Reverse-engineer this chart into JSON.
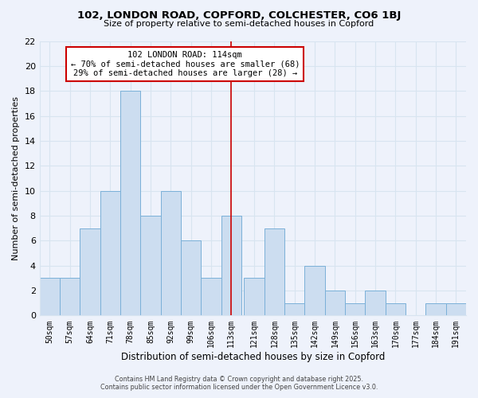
{
  "title": "102, LONDON ROAD, COPFORD, COLCHESTER, CO6 1BJ",
  "subtitle": "Size of property relative to semi-detached houses in Copford",
  "xlabel": "Distribution of semi-detached houses by size in Copford",
  "ylabel": "Number of semi-detached properties",
  "bin_labels": [
    "50sqm",
    "57sqm",
    "64sqm",
    "71sqm",
    "78sqm",
    "85sqm",
    "92sqm",
    "99sqm",
    "106sqm",
    "113sqm",
    "121sqm",
    "128sqm",
    "135sqm",
    "142sqm",
    "149sqm",
    "156sqm",
    "163sqm",
    "170sqm",
    "177sqm",
    "184sqm",
    "191sqm"
  ],
  "bin_left_edges": [
    50,
    57,
    64,
    71,
    78,
    85,
    92,
    99,
    106,
    113,
    121,
    128,
    135,
    142,
    149,
    156,
    163,
    170,
    177,
    184,
    191
  ],
  "bin_width": 7,
  "counts": [
    3,
    3,
    7,
    10,
    18,
    8,
    10,
    6,
    3,
    8,
    3,
    7,
    1,
    4,
    2,
    1,
    2,
    1,
    0,
    1,
    1
  ],
  "bar_color": "#ccddf0",
  "bar_edge_color": "#7ab0d8",
  "ref_line_x": 116.5,
  "ref_line_color": "#cc0000",
  "annotation_title": "102 LONDON ROAD: 114sqm",
  "annotation_line1": "← 70% of semi-detached houses are smaller (68)",
  "annotation_line2": "29% of semi-detached houses are larger (28) →",
  "annotation_box_facecolor": "#ffffff",
  "annotation_box_edgecolor": "#cc0000",
  "ylim": [
    0,
    22
  ],
  "yticks": [
    0,
    2,
    4,
    6,
    8,
    10,
    12,
    14,
    16,
    18,
    20,
    22
  ],
  "bg_color": "#eef2fb",
  "grid_color": "#d8e4f0",
  "footer_line1": "Contains HM Land Registry data © Crown copyright and database right 2025.",
  "footer_line2": "Contains public sector information licensed under the Open Government Licence v3.0."
}
